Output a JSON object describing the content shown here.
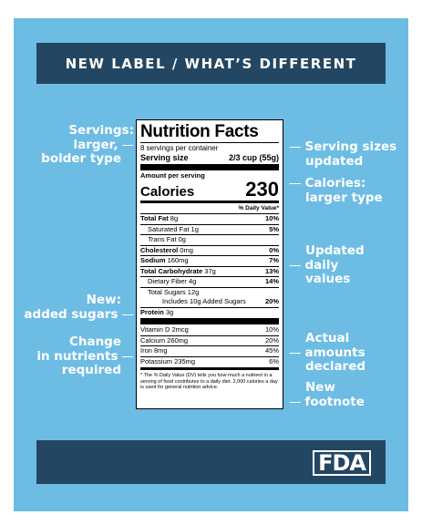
{
  "banner": {
    "title": "NEW LABEL / WHAT’S DIFFERENT"
  },
  "footer": {
    "logo_text": "FDA"
  },
  "annotations_left": [
    {
      "text": "Servings:",
      "text2": "larger,",
      "text3": "bolder type"
    },
    {
      "text": "New:",
      "text2": "added sugars"
    },
    {
      "text": "Change",
      "text2": "in nutrients",
      "text3": "required"
    }
  ],
  "annotations_right": [
    {
      "text": "Serving sizes",
      "text2": "updated"
    },
    {
      "text": "Calories:",
      "text2": "larger type"
    },
    {
      "text": "Updated",
      "text2": "daily",
      "text3": "values"
    },
    {
      "text": "Actual",
      "text2": "amounts",
      "text3": "declared"
    },
    {
      "text": "New",
      "text2": "footnote"
    }
  ],
  "label": {
    "title": "Nutrition Facts",
    "servings_per_container": "8 servings per container",
    "serving_size_label": "Serving size",
    "serving_size_value": "2/3 cup (55g)",
    "amount_per_serving": "Amount per serving",
    "calories_label": "Calories",
    "calories_value": "230",
    "dv_header": "% Daily Value*",
    "rows": {
      "total_fat": {
        "name": "Total Fat",
        "amount": "8g",
        "dv": "10%"
      },
      "sat_fat": {
        "name": "Saturated Fat 1g",
        "dv": "5%"
      },
      "trans_fat": {
        "name": "Trans",
        "rest": " Fat 0g"
      },
      "cholesterol": {
        "name": "Cholesterol",
        "amount": "0mg",
        "dv": "0%"
      },
      "sodium": {
        "name": "Sodium",
        "amount": "160mg",
        "dv": "7%"
      },
      "carb": {
        "name": "Total Carbohydrate",
        "amount": "37g",
        "dv": "13%"
      },
      "fiber": {
        "name": "Dietary Fiber 4g",
        "dv": "14%"
      },
      "sugars": {
        "name": "Total Sugars 12g"
      },
      "added": {
        "name": "Includes 10g Added Sugars",
        "dv": "20%"
      },
      "protein": {
        "name": "Protein",
        "amount": "3g"
      },
      "vitd": {
        "name": "Vitamin D 2mcg",
        "dv": "10%"
      },
      "calcium": {
        "name": "Calcium 260mg",
        "dv": "20%"
      },
      "iron": {
        "name": "Iron 8mg",
        "dv": "45%"
      },
      "potassium": {
        "name": "Potassium 235mg",
        "dv": "6%"
      }
    },
    "footnote": "* The % Daily Value (DV) tells you how much a nutrient in a serving of food contributes to a daily diet. 2,000 calories a day is used for general nutrition advice."
  },
  "colors": {
    "background": "#6dbce3",
    "banner": "#234662",
    "text": "#ffffff"
  }
}
